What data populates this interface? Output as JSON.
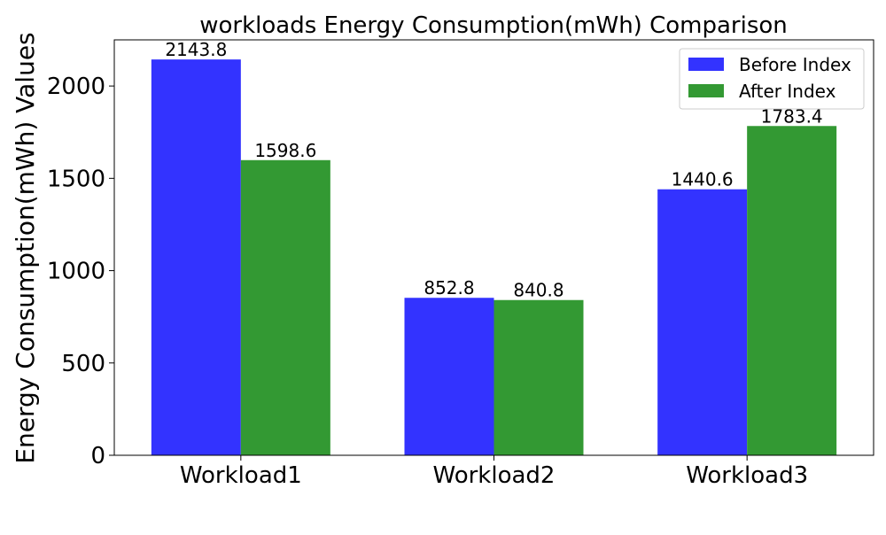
{
  "chart_data": {
    "type": "bar",
    "title": "workloads Energy Consumption(mWh) Comparison",
    "xlabel": "",
    "ylabel": "Energy Consumption(mWh) Values",
    "categories": [
      "Workload1",
      "Workload2",
      "Workload3"
    ],
    "series": [
      {
        "name": "Before Index",
        "values": [
          2143.8,
          852.8,
          1440.6
        ],
        "color": "#3333ff"
      },
      {
        "name": "After Index",
        "values": [
          1598.6,
          840.8,
          1783.4
        ],
        "color": "#339933"
      }
    ],
    "value_labels": {
      "Before Index": [
        "2143.8",
        "852.8",
        "1440.6"
      ],
      "After Index": [
        "1598.6",
        "840.8",
        "1783.4"
      ]
    },
    "ylim": [
      0,
      2250
    ],
    "yticks": [
      0,
      500,
      1000,
      1500,
      2000
    ],
    "ytick_labels": [
      "0",
      "500",
      "1000",
      "1500",
      "2000"
    ],
    "grid": false,
    "legend_position": "top-right"
  }
}
